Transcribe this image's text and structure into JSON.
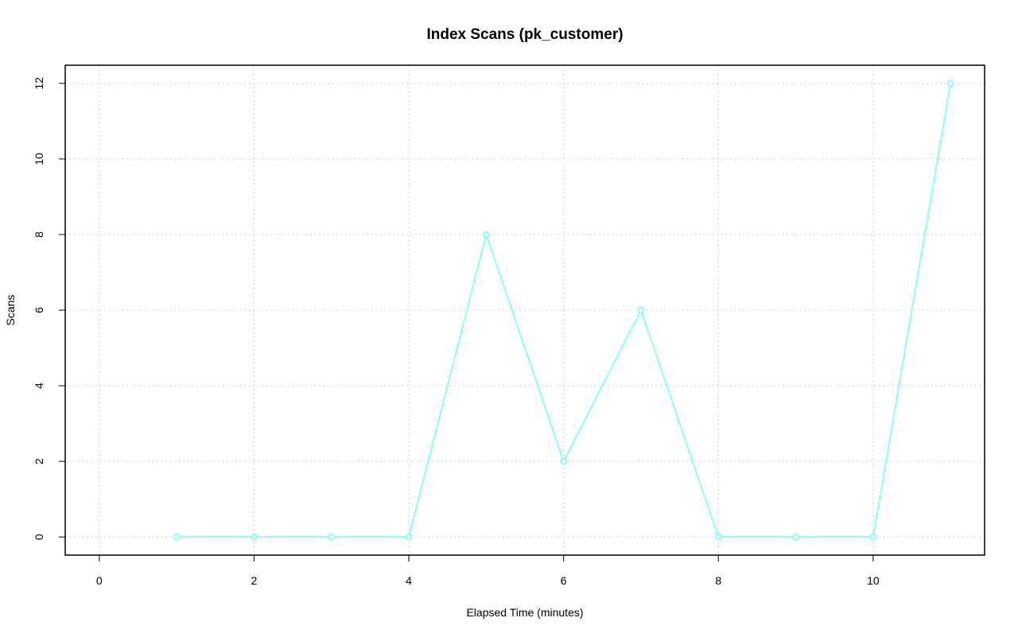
{
  "chart_data": {
    "type": "line",
    "title": "Index Scans (pk_customer)",
    "x_label": "Elapsed Time (minutes)",
    "y_label": "Scans",
    "x": [
      1,
      2,
      3,
      4,
      5,
      6,
      7,
      8,
      9,
      10,
      11
    ],
    "series": [
      {
        "name": "pk_customer",
        "color": "#66ffff",
        "values": [
          0,
          0,
          0,
          0,
          8,
          2,
          6,
          0,
          0,
          0,
          12
        ]
      }
    ],
    "xlim": [
      -0.44,
      11.44
    ],
    "xticks": [
      0,
      2,
      4,
      6,
      8,
      10
    ],
    "ylim": [
      -0.48,
      12.48
    ],
    "yticks": [
      0,
      2,
      4,
      6,
      8,
      10,
      12
    ],
    "grid": true
  }
}
